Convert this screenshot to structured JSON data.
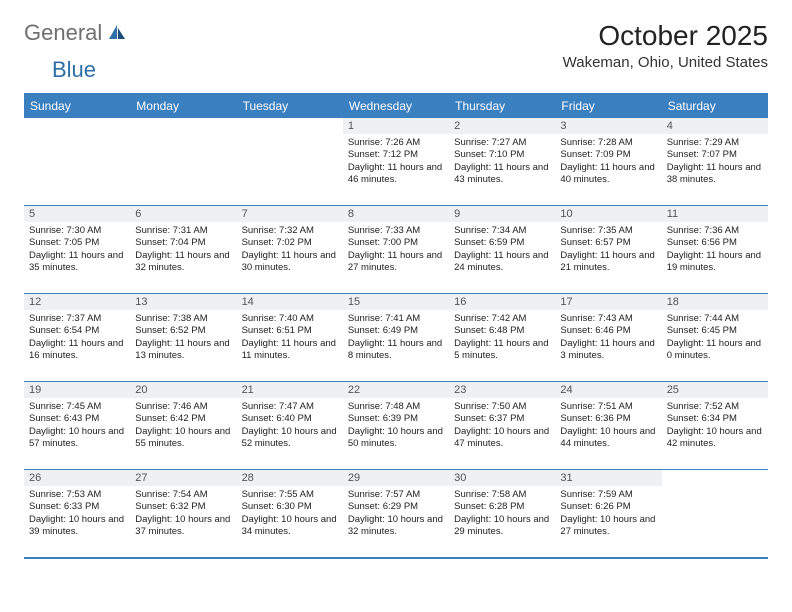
{
  "brand": {
    "text1": "General",
    "text2": "Blue"
  },
  "title": "October 2025",
  "location": "Wakeman, Ohio, United States",
  "colors": {
    "header_bg": "#3a7fc0",
    "header_text": "#ffffff",
    "daynum_bg": "#eef0f2",
    "border": "#3a7fc0",
    "logo_gray": "#6f6f6f",
    "logo_blue": "#2f6fa8"
  },
  "day_labels": [
    "Sunday",
    "Monday",
    "Tuesday",
    "Wednesday",
    "Thursday",
    "Friday",
    "Saturday"
  ],
  "weeks": [
    [
      {
        "empty": true
      },
      {
        "empty": true
      },
      {
        "empty": true
      },
      {
        "num": "1",
        "sunrise": "7:26 AM",
        "sunset": "7:12 PM",
        "dhrs": "11",
        "dmin": "46"
      },
      {
        "num": "2",
        "sunrise": "7:27 AM",
        "sunset": "7:10 PM",
        "dhrs": "11",
        "dmin": "43"
      },
      {
        "num": "3",
        "sunrise": "7:28 AM",
        "sunset": "7:09 PM",
        "dhrs": "11",
        "dmin": "40"
      },
      {
        "num": "4",
        "sunrise": "7:29 AM",
        "sunset": "7:07 PM",
        "dhrs": "11",
        "dmin": "38"
      }
    ],
    [
      {
        "num": "5",
        "sunrise": "7:30 AM",
        "sunset": "7:05 PM",
        "dhrs": "11",
        "dmin": "35"
      },
      {
        "num": "6",
        "sunrise": "7:31 AM",
        "sunset": "7:04 PM",
        "dhrs": "11",
        "dmin": "32"
      },
      {
        "num": "7",
        "sunrise": "7:32 AM",
        "sunset": "7:02 PM",
        "dhrs": "11",
        "dmin": "30"
      },
      {
        "num": "8",
        "sunrise": "7:33 AM",
        "sunset": "7:00 PM",
        "dhrs": "11",
        "dmin": "27"
      },
      {
        "num": "9",
        "sunrise": "7:34 AM",
        "sunset": "6:59 PM",
        "dhrs": "11",
        "dmin": "24"
      },
      {
        "num": "10",
        "sunrise": "7:35 AM",
        "sunset": "6:57 PM",
        "dhrs": "11",
        "dmin": "21"
      },
      {
        "num": "11",
        "sunrise": "7:36 AM",
        "sunset": "6:56 PM",
        "dhrs": "11",
        "dmin": "19"
      }
    ],
    [
      {
        "num": "12",
        "sunrise": "7:37 AM",
        "sunset": "6:54 PM",
        "dhrs": "11",
        "dmin": "16"
      },
      {
        "num": "13",
        "sunrise": "7:38 AM",
        "sunset": "6:52 PM",
        "dhrs": "11",
        "dmin": "13"
      },
      {
        "num": "14",
        "sunrise": "7:40 AM",
        "sunset": "6:51 PM",
        "dhrs": "11",
        "dmin": "11"
      },
      {
        "num": "15",
        "sunrise": "7:41 AM",
        "sunset": "6:49 PM",
        "dhrs": "11",
        "dmin": "8"
      },
      {
        "num": "16",
        "sunrise": "7:42 AM",
        "sunset": "6:48 PM",
        "dhrs": "11",
        "dmin": "5"
      },
      {
        "num": "17",
        "sunrise": "7:43 AM",
        "sunset": "6:46 PM",
        "dhrs": "11",
        "dmin": "3"
      },
      {
        "num": "18",
        "sunrise": "7:44 AM",
        "sunset": "6:45 PM",
        "dhrs": "11",
        "dmin": "0"
      }
    ],
    [
      {
        "num": "19",
        "sunrise": "7:45 AM",
        "sunset": "6:43 PM",
        "dhrs": "10",
        "dmin": "57"
      },
      {
        "num": "20",
        "sunrise": "7:46 AM",
        "sunset": "6:42 PM",
        "dhrs": "10",
        "dmin": "55"
      },
      {
        "num": "21",
        "sunrise": "7:47 AM",
        "sunset": "6:40 PM",
        "dhrs": "10",
        "dmin": "52"
      },
      {
        "num": "22",
        "sunrise": "7:48 AM",
        "sunset": "6:39 PM",
        "dhrs": "10",
        "dmin": "50"
      },
      {
        "num": "23",
        "sunrise": "7:50 AM",
        "sunset": "6:37 PM",
        "dhrs": "10",
        "dmin": "47"
      },
      {
        "num": "24",
        "sunrise": "7:51 AM",
        "sunset": "6:36 PM",
        "dhrs": "10",
        "dmin": "44"
      },
      {
        "num": "25",
        "sunrise": "7:52 AM",
        "sunset": "6:34 PM",
        "dhrs": "10",
        "dmin": "42"
      }
    ],
    [
      {
        "num": "26",
        "sunrise": "7:53 AM",
        "sunset": "6:33 PM",
        "dhrs": "10",
        "dmin": "39"
      },
      {
        "num": "27",
        "sunrise": "7:54 AM",
        "sunset": "6:32 PM",
        "dhrs": "10",
        "dmin": "37"
      },
      {
        "num": "28",
        "sunrise": "7:55 AM",
        "sunset": "6:30 PM",
        "dhrs": "10",
        "dmin": "34"
      },
      {
        "num": "29",
        "sunrise": "7:57 AM",
        "sunset": "6:29 PM",
        "dhrs": "10",
        "dmin": "32"
      },
      {
        "num": "30",
        "sunrise": "7:58 AM",
        "sunset": "6:28 PM",
        "dhrs": "10",
        "dmin": "29"
      },
      {
        "num": "31",
        "sunrise": "7:59 AM",
        "sunset": "6:26 PM",
        "dhrs": "10",
        "dmin": "27"
      },
      {
        "empty": true
      }
    ]
  ],
  "labels": {
    "sunrise_prefix": "Sunrise: ",
    "sunset_prefix": "Sunset: ",
    "daylight_prefix": "Daylight: ",
    "hours_word": " hours and ",
    "minutes_word": " minutes."
  }
}
